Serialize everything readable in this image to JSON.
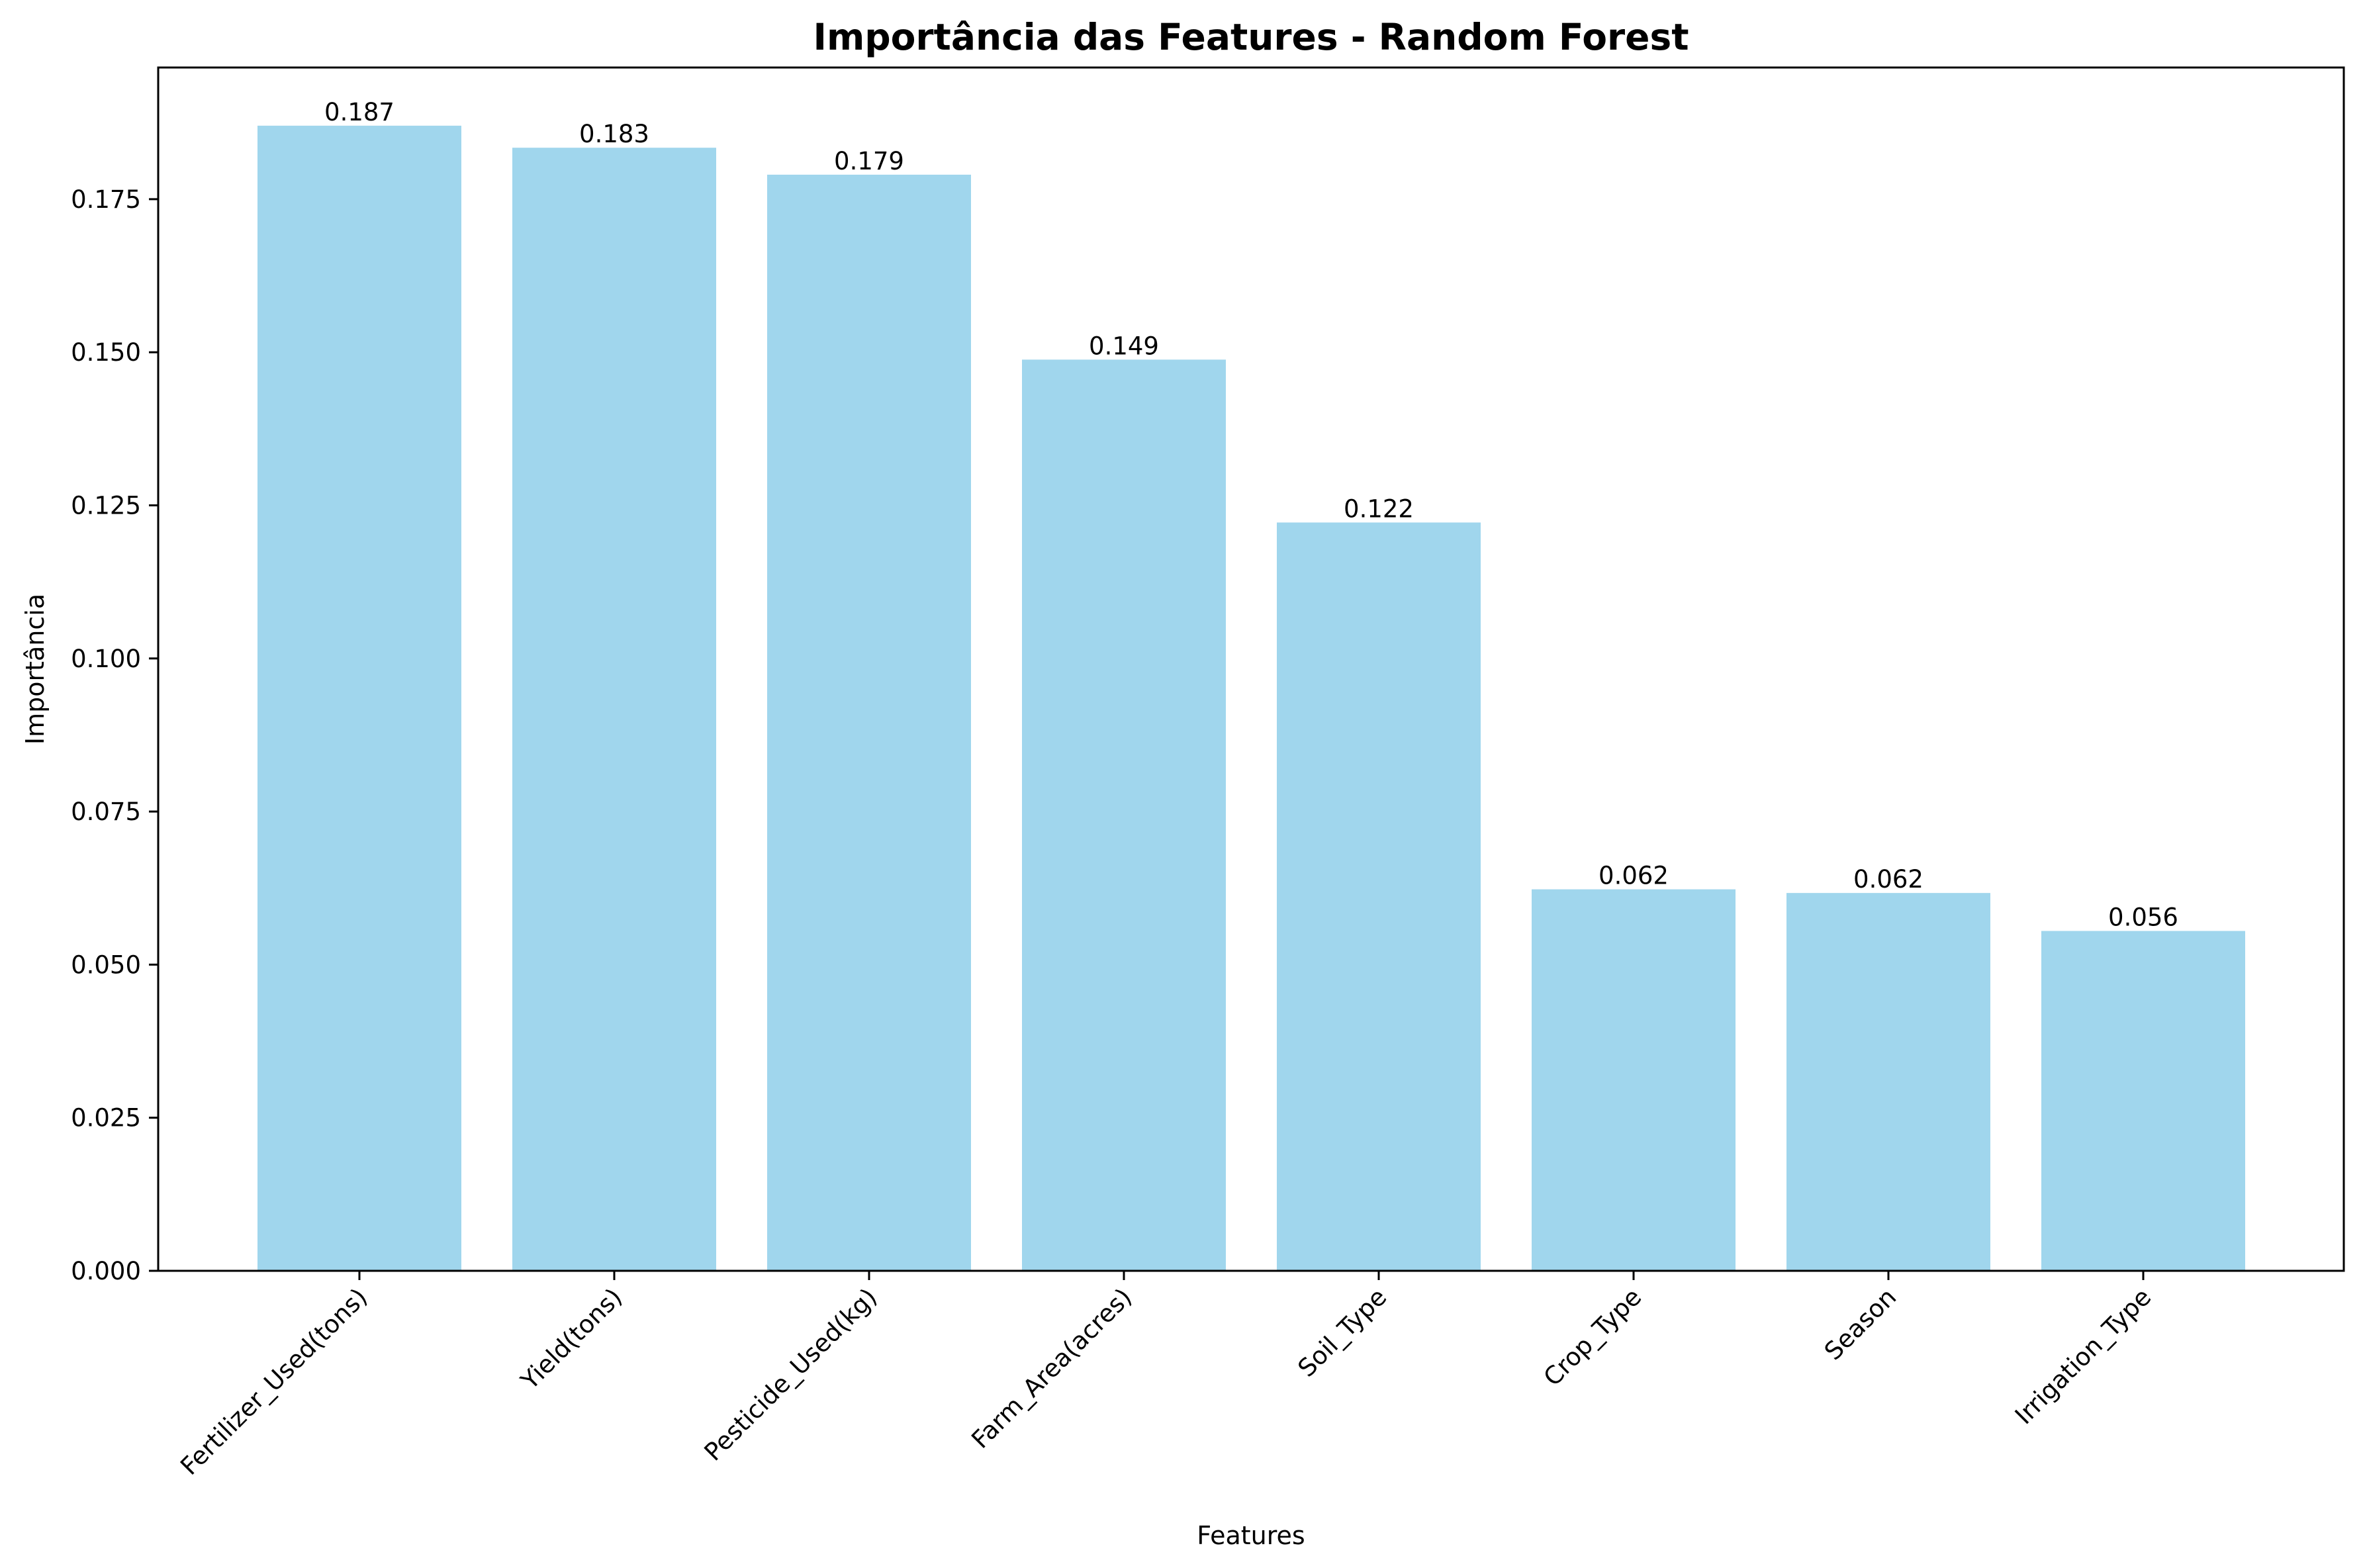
{
  "chart_data": {
    "type": "bar",
    "title": "Importância das Features - Random Forest",
    "xlabel": "Features",
    "ylabel": "Importância",
    "categories": [
      "Fertilizer_Used(tons)",
      "Yield(tons)",
      "Pesticide_Used(kg)",
      "Farm_Area(acres)",
      "Soil_Type",
      "Crop_Type",
      "Season",
      "Irrigation_Type"
    ],
    "values": [
      0.187,
      0.1834,
      0.179,
      0.1488,
      0.1222,
      0.0623,
      0.0617,
      0.0555
    ],
    "value_labels": [
      "0.187",
      "0.183",
      "0.179",
      "0.149",
      "0.122",
      "0.062",
      "0.062",
      "0.056"
    ],
    "ylim": [
      0,
      0.1965
    ],
    "yticks": [
      0.0,
      0.025,
      0.05,
      0.075,
      0.1,
      0.125,
      0.15,
      0.175
    ],
    "ytick_labels": [
      "0.000",
      "0.025",
      "0.050",
      "0.075",
      "0.100",
      "0.125",
      "0.150",
      "0.175"
    ],
    "bar_color": "#a0d6ed",
    "grid": false,
    "legend": "none"
  }
}
